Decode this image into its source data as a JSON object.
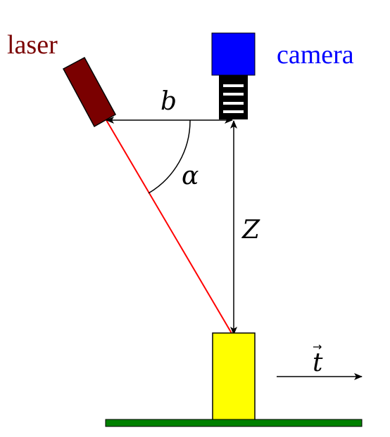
{
  "labels": {
    "laser": "laser",
    "camera": "camera",
    "baseline": "b",
    "angle": "α",
    "distance": "Z",
    "motion": "t",
    "motion_arrow_accent": "→"
  },
  "colors": {
    "laser_text": "#7a0000",
    "laser_body": "#7a0000",
    "laser_beam": "#ff0000",
    "camera_text": "#0000ff",
    "camera_body": "#0000ff",
    "camera_lens": "#000000",
    "object": "#ffff00",
    "conveyor": "#008000",
    "lines": "#000000"
  },
  "icons": {
    "laser": "laser-emitter-icon",
    "camera": "camera-icon"
  }
}
